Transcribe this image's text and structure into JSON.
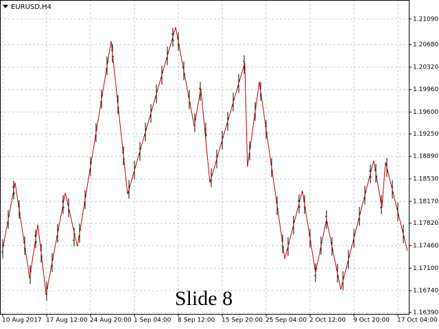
{
  "chart_data": {
    "type": "ohlc",
    "title": "EURUSD,H4",
    "annotation": "Slide 8",
    "grid": true,
    "ylim": [
      1.16368,
      1.21395
    ],
    "yticks": [
      {
        "value": 1.2109,
        "label": "1.21090"
      },
      {
        "value": 1.2068,
        "label": "1.20680"
      },
      {
        "value": 1.2032,
        "label": "1.20320"
      },
      {
        "value": 1.1996,
        "label": "1.19960"
      },
      {
        "value": 1.196,
        "label": "1.19600"
      },
      {
        "value": 1.1925,
        "label": "1.19250"
      },
      {
        "value": 1.1889,
        "label": "1.18890"
      },
      {
        "value": 1.1853,
        "label": "1.18530"
      },
      {
        "value": 1.1817,
        "label": "1.18170"
      },
      {
        "value": 1.1782,
        "label": "1.17820"
      },
      {
        "value": 1.1746,
        "label": "1.17460"
      },
      {
        "value": 1.171,
        "label": "1.17100"
      },
      {
        "value": 1.1674,
        "label": "1.16740"
      },
      {
        "value": 1.1639,
        "label": "1.16390"
      }
    ],
    "xlim": [
      -0.5,
      74
    ],
    "xticks": [
      {
        "value": 0,
        "label": "10 Aug 2017"
      },
      {
        "value": 8,
        "label": "17 Aug 12:00"
      },
      {
        "value": 16,
        "label": "24 Aug 20:00"
      },
      {
        "value": 24,
        "label": "1 Sep 04:00"
      },
      {
        "value": 32,
        "label": "8 Sep 12:00"
      },
      {
        "value": 40,
        "label": "15 Sep 20:00"
      },
      {
        "value": 48,
        "label": "25 Sep 04:00"
      },
      {
        "value": 56,
        "label": "2 Oct 12:00"
      },
      {
        "value": 64,
        "label": "9 Oct 20:00"
      },
      {
        "value": 72,
        "label": "17 Oct 04:00"
      }
    ],
    "bars": {
      "color": "#000000",
      "open": [
        1.1736,
        1.1783,
        1.184,
        1.1809,
        1.1751,
        1.1695,
        1.1762,
        1.1739,
        1.1668,
        1.1714,
        1.1761,
        1.1817,
        1.1812,
        1.1755,
        1.1761,
        1.1815,
        1.1868,
        1.1922,
        1.1976,
        1.2029,
        1.2059,
        1.1977,
        1.1895,
        1.1831,
        1.1862,
        1.1892,
        1.1923,
        1.1953,
        1.1984,
        1.2014,
        1.2045,
        1.2085,
        1.2078,
        1.2031,
        1.1985,
        1.1938,
        1.1998,
        1.1933,
        1.185,
        1.188,
        1.191,
        1.194,
        1.1971,
        1.2001,
        1.2041,
        1.1893,
        1.1956,
        1.1998,
        1.1937,
        1.1876,
        1.1815,
        1.1754,
        1.174,
        1.1774,
        1.1818,
        1.1817,
        1.1763,
        1.1698,
        1.1741,
        1.1793,
        1.175,
        1.1707,
        1.1685,
        1.1719,
        1.1753,
        1.1788,
        1.1822,
        1.1866,
        1.1867,
        1.1807,
        1.1876,
        1.1841,
        1.1805,
        1.177
      ],
      "high": [
        1.1756,
        1.1803,
        1.185,
        1.1819,
        1.1761,
        1.1715,
        1.1772,
        1.1749,
        1.1688,
        1.1734,
        1.1781,
        1.1827,
        1.1822,
        1.1775,
        1.1781,
        1.1835,
        1.1888,
        1.1942,
        1.1996,
        1.2049,
        1.2069,
        1.1987,
        1.1905,
        1.1851,
        1.1882,
        1.1912,
        1.1943,
        1.1973,
        1.2004,
        1.2034,
        1.2065,
        1.2095,
        1.2088,
        1.2041,
        1.1995,
        1.1958,
        1.2008,
        1.1943,
        1.187,
        1.19,
        1.193,
        1.196,
        1.1991,
        1.2021,
        1.2051,
        1.1913,
        1.1976,
        1.2008,
        1.1947,
        1.1886,
        1.1825,
        1.1764,
        1.176,
        1.1794,
        1.1828,
        1.1827,
        1.1773,
        1.1718,
        1.1761,
        1.1803,
        1.176,
        1.1717,
        1.1705,
        1.1739,
        1.1773,
        1.1808,
        1.1842,
        1.1876,
        1.1877,
        1.1827,
        1.1886,
        1.1851,
        1.1815,
        1.178
      ],
      "low": [
        1.1726,
        1.1773,
        1.182,
        1.1789,
        1.1731,
        1.1685,
        1.1742,
        1.1719,
        1.1658,
        1.1704,
        1.1751,
        1.1797,
        1.1792,
        1.1745,
        1.1751,
        1.1805,
        1.1858,
        1.1912,
        1.1966,
        1.2019,
        1.2039,
        1.1957,
        1.1875,
        1.1821,
        1.1852,
        1.1882,
        1.1913,
        1.1943,
        1.1974,
        1.2004,
        1.2035,
        1.2065,
        1.2058,
        1.2011,
        1.1965,
        1.1928,
        1.1978,
        1.1913,
        1.184,
        1.187,
        1.19,
        1.193,
        1.1961,
        1.1991,
        1.2021,
        1.1883,
        1.1946,
        1.1978,
        1.1917,
        1.1856,
        1.1795,
        1.1734,
        1.173,
        1.1764,
        1.1798,
        1.1797,
        1.1743,
        1.1688,
        1.1731,
        1.1773,
        1.173,
        1.1687,
        1.1675,
        1.1709,
        1.1743,
        1.1778,
        1.1812,
        1.1846,
        1.1847,
        1.1797,
        1.1856,
        1.1821,
        1.1785,
        1.175
      ],
      "close": [
        1.1746,
        1.1793,
        1.183,
        1.1799,
        1.1741,
        1.1705,
        1.1752,
        1.1729,
        1.1678,
        1.1724,
        1.1771,
        1.1807,
        1.1802,
        1.1765,
        1.1771,
        1.1825,
        1.1878,
        1.1932,
        1.1986,
        1.2039,
        1.2049,
        1.1967,
        1.1885,
        1.1841,
        1.1872,
        1.1902,
        1.1933,
        1.1963,
        1.1994,
        1.2024,
        1.2055,
        1.2075,
        1.2068,
        1.2021,
        1.1975,
        1.1948,
        1.1988,
        1.1923,
        1.186,
        1.189,
        1.192,
        1.195,
        1.1981,
        1.2011,
        1.2031,
        1.1903,
        1.1966,
        1.1988,
        1.1927,
        1.1866,
        1.1805,
        1.1744,
        1.175,
        1.1784,
        1.1808,
        1.1807,
        1.1753,
        1.1708,
        1.1751,
        1.1783,
        1.174,
        1.1697,
        1.1695,
        1.1729,
        1.1763,
        1.1798,
        1.1832,
        1.1856,
        1.1857,
        1.1817,
        1.1866,
        1.1831,
        1.1795,
        1.176
      ]
    },
    "zigzag": {
      "color": "#c00000",
      "x": [
        0,
        2.25,
        4.9,
        6.4,
        7.9,
        11.4,
        13.6,
        19.75,
        22.75,
        31.5,
        34.9,
        36.1,
        37.75,
        44.1,
        44.6,
        46.75,
        51.4,
        54.6,
        57,
        59,
        61.6,
        67.6,
        69.1,
        69.75,
        73.75
      ],
      "values": [
        1.17413,
        1.18471,
        1.16944,
        1.17795,
        1.16682,
        1.18308,
        1.17446,
        1.2074,
        1.18286,
        1.20959,
        1.19377,
        1.19977,
        1.18471,
        1.20391,
        1.18722,
        1.20086,
        1.1725,
        1.18341,
        1.17032,
        1.17882,
        1.16759,
        1.18821,
        1.18068,
        1.18799,
        1.17381
      ]
    }
  }
}
